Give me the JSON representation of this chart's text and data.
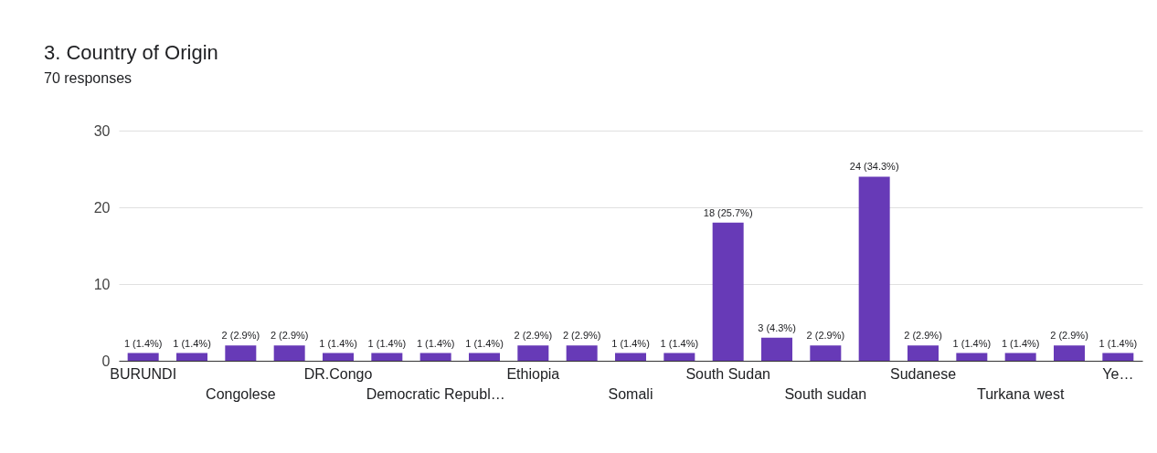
{
  "chart_data": {
    "type": "bar",
    "title": "3. Country of Origin",
    "subtitle": "70 responses",
    "categories": [
      "BURUNDI",
      null,
      "Congolese",
      null,
      "DR.Congo",
      null,
      "Democratic Republ…",
      null,
      "Ethiopia",
      null,
      "Somali",
      null,
      "South Sudan",
      null,
      "South sudan",
      null,
      "Sudanese",
      null,
      "Turkana west",
      null,
      "Ye…"
    ],
    "values": [
      1,
      1,
      2,
      2,
      1,
      1,
      1,
      1,
      2,
      2,
      1,
      1,
      18,
      3,
      2,
      24,
      2,
      1,
      1,
      2,
      1
    ],
    "value_labels": [
      "1 (1.4%)",
      "1 (1.4%)",
      "2 (2.9%)",
      "2 (2.9%)",
      "1 (1.4%)",
      "1 (1.4%)",
      "1 (1.4%)",
      "1 (1.4%)",
      "2 (2.9%)",
      "2 (2.9%)",
      "1 (1.4%)",
      "1 (1.4%)",
      "18 (25.7%)",
      "3 (4.3%)",
      "2 (2.9%)",
      "24 (34.3%)",
      "2 (2.9%)",
      "1 (1.4%)",
      "1 (1.4%)",
      "2 (2.9%)",
      "1 (1.4%)"
    ],
    "color": "#673ab7",
    "ylim": [
      0,
      30
    ],
    "yticks": [
      0,
      10,
      20,
      30
    ],
    "grid": "y"
  }
}
